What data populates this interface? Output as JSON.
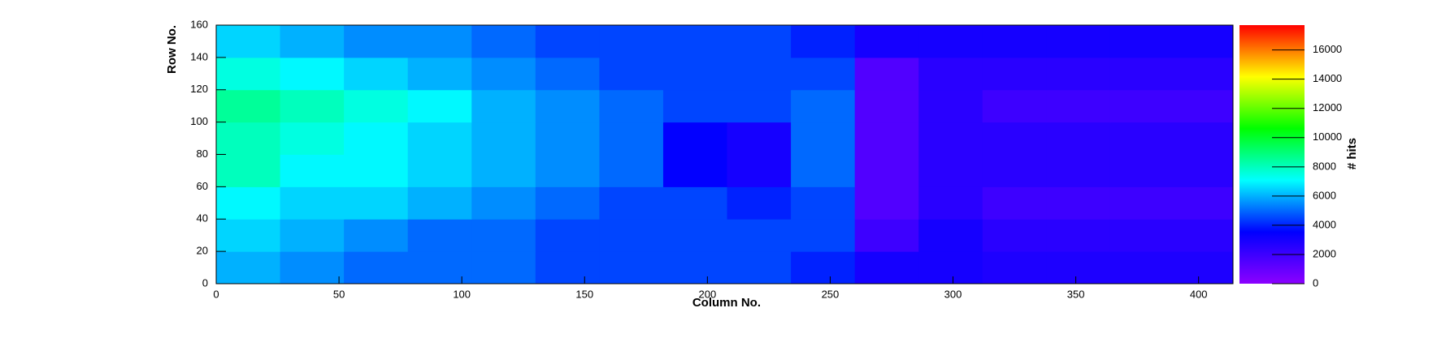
{
  "chart_data": {
    "type": "heatmap",
    "xlabel": "Column No.",
    "ylabel": "Row No.",
    "zlabel": "# hits",
    "xlim": [
      0,
      414
    ],
    "ylim": [
      0,
      160
    ],
    "zlim": [
      0,
      17700
    ],
    "xticks": [
      0,
      50,
      100,
      150,
      200,
      250,
      300,
      350,
      400
    ],
    "yticks": [
      0,
      20,
      40,
      60,
      80,
      100,
      120,
      140,
      160
    ],
    "zticks": [
      0,
      2000,
      4000,
      6000,
      8000,
      10000,
      12000,
      14000,
      16000
    ],
    "colormap": [
      "#8c00ff",
      "#0000ff",
      "#00ffff",
      "#00ff00",
      "#ffff00",
      "#ff0000"
    ],
    "xbins": [
      0,
      26,
      52,
      78,
      104,
      130,
      156,
      182,
      208,
      234,
      260,
      286,
      312,
      338,
      364,
      390,
      416
    ],
    "ybins": [
      0,
      20,
      40,
      60,
      80,
      100,
      120,
      140,
      160
    ],
    "z": [
      [
        6000,
        5500,
        5000,
        5000,
        5000,
        4500,
        4500,
        4500,
        4500,
        4000,
        3000,
        3000,
        2800,
        2800,
        2800,
        2800
      ],
      [
        6500,
        6000,
        5500,
        5000,
        5000,
        4500,
        4500,
        4500,
        4500,
        4500,
        2000,
        3000,
        2500,
        2500,
        2500,
        2500
      ],
      [
        7000,
        6500,
        6500,
        6000,
        5500,
        5000,
        4500,
        4500,
        4000,
        4500,
        1500,
        2500,
        2000,
        2000,
        2000,
        2000
      ],
      [
        8000,
        7000,
        7000,
        6500,
        6000,
        5500,
        5000,
        3500,
        3000,
        5000,
        1500,
        2500,
        2500,
        2500,
        2500,
        2500
      ],
      [
        8000,
        7500,
        7000,
        6500,
        6000,
        5500,
        5000,
        3500,
        3000,
        5000,
        1500,
        2500,
        2500,
        2500,
        2500,
        2500
      ],
      [
        8500,
        8000,
        7500,
        7000,
        6000,
        5500,
        5000,
        4500,
        4500,
        5000,
        1500,
        2500,
        2000,
        2000,
        2000,
        2000
      ],
      [
        7500,
        7000,
        6500,
        6000,
        5500,
        5000,
        4500,
        4500,
        4500,
        4500,
        1500,
        2500,
        2500,
        2500,
        2500,
        2500
      ],
      [
        6500,
        6000,
        5500,
        5500,
        5000,
        4500,
        4500,
        4500,
        4500,
        4000,
        3000,
        3000,
        3000,
        3000,
        3000,
        3000
      ]
    ]
  }
}
